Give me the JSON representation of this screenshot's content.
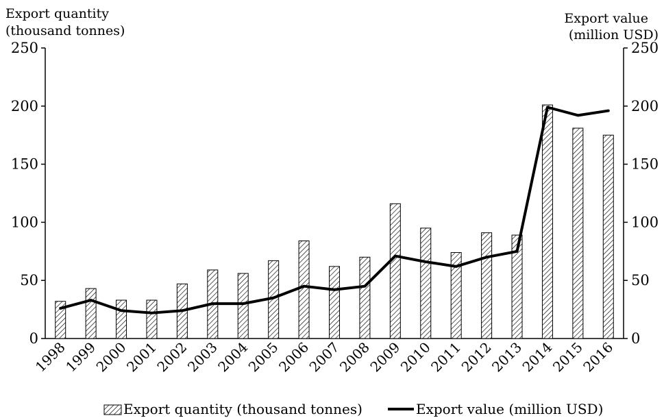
{
  "chart_data": {
    "type": "bar",
    "categories": [
      "1998",
      "1999",
      "2000",
      "2001",
      "2002",
      "2003",
      "2004",
      "2005",
      "2006",
      "2007",
      "2008",
      "2009",
      "2010",
      "2011",
      "2012",
      "2013",
      "2014",
      "2015",
      "2016"
    ],
    "series": [
      {
        "name": "Export quantity (thousand tonnes)",
        "type": "bar",
        "axis": "left",
        "values": [
          32,
          43,
          33,
          33,
          47,
          59,
          56,
          67,
          84,
          62,
          70,
          116,
          95,
          74,
          91,
          89,
          201,
          181,
          175
        ]
      },
      {
        "name": "Export value (million USD)",
        "type": "line",
        "axis": "right",
        "values": [
          26,
          33,
          24,
          22,
          24,
          30,
          30,
          35,
          45,
          42,
          45,
          71,
          66,
          62,
          70,
          75,
          199,
          192,
          196
        ]
      }
    ],
    "y_left": {
      "label_line1": "Export quantity",
      "label_line2": "(thousand tonnes)",
      "ylim": [
        0,
        250
      ],
      "ticks": [
        0,
        50,
        100,
        150,
        200,
        250
      ]
    },
    "y_right": {
      "label_line1": "Export value",
      "label_line2": "(million USD)",
      "ylim": [
        0,
        250
      ],
      "ticks": [
        0,
        50,
        100,
        150,
        200,
        250
      ]
    },
    "grid": false,
    "legend": "bottom",
    "bar_fill": "diagonal-hatch",
    "line_color": "#000000"
  }
}
